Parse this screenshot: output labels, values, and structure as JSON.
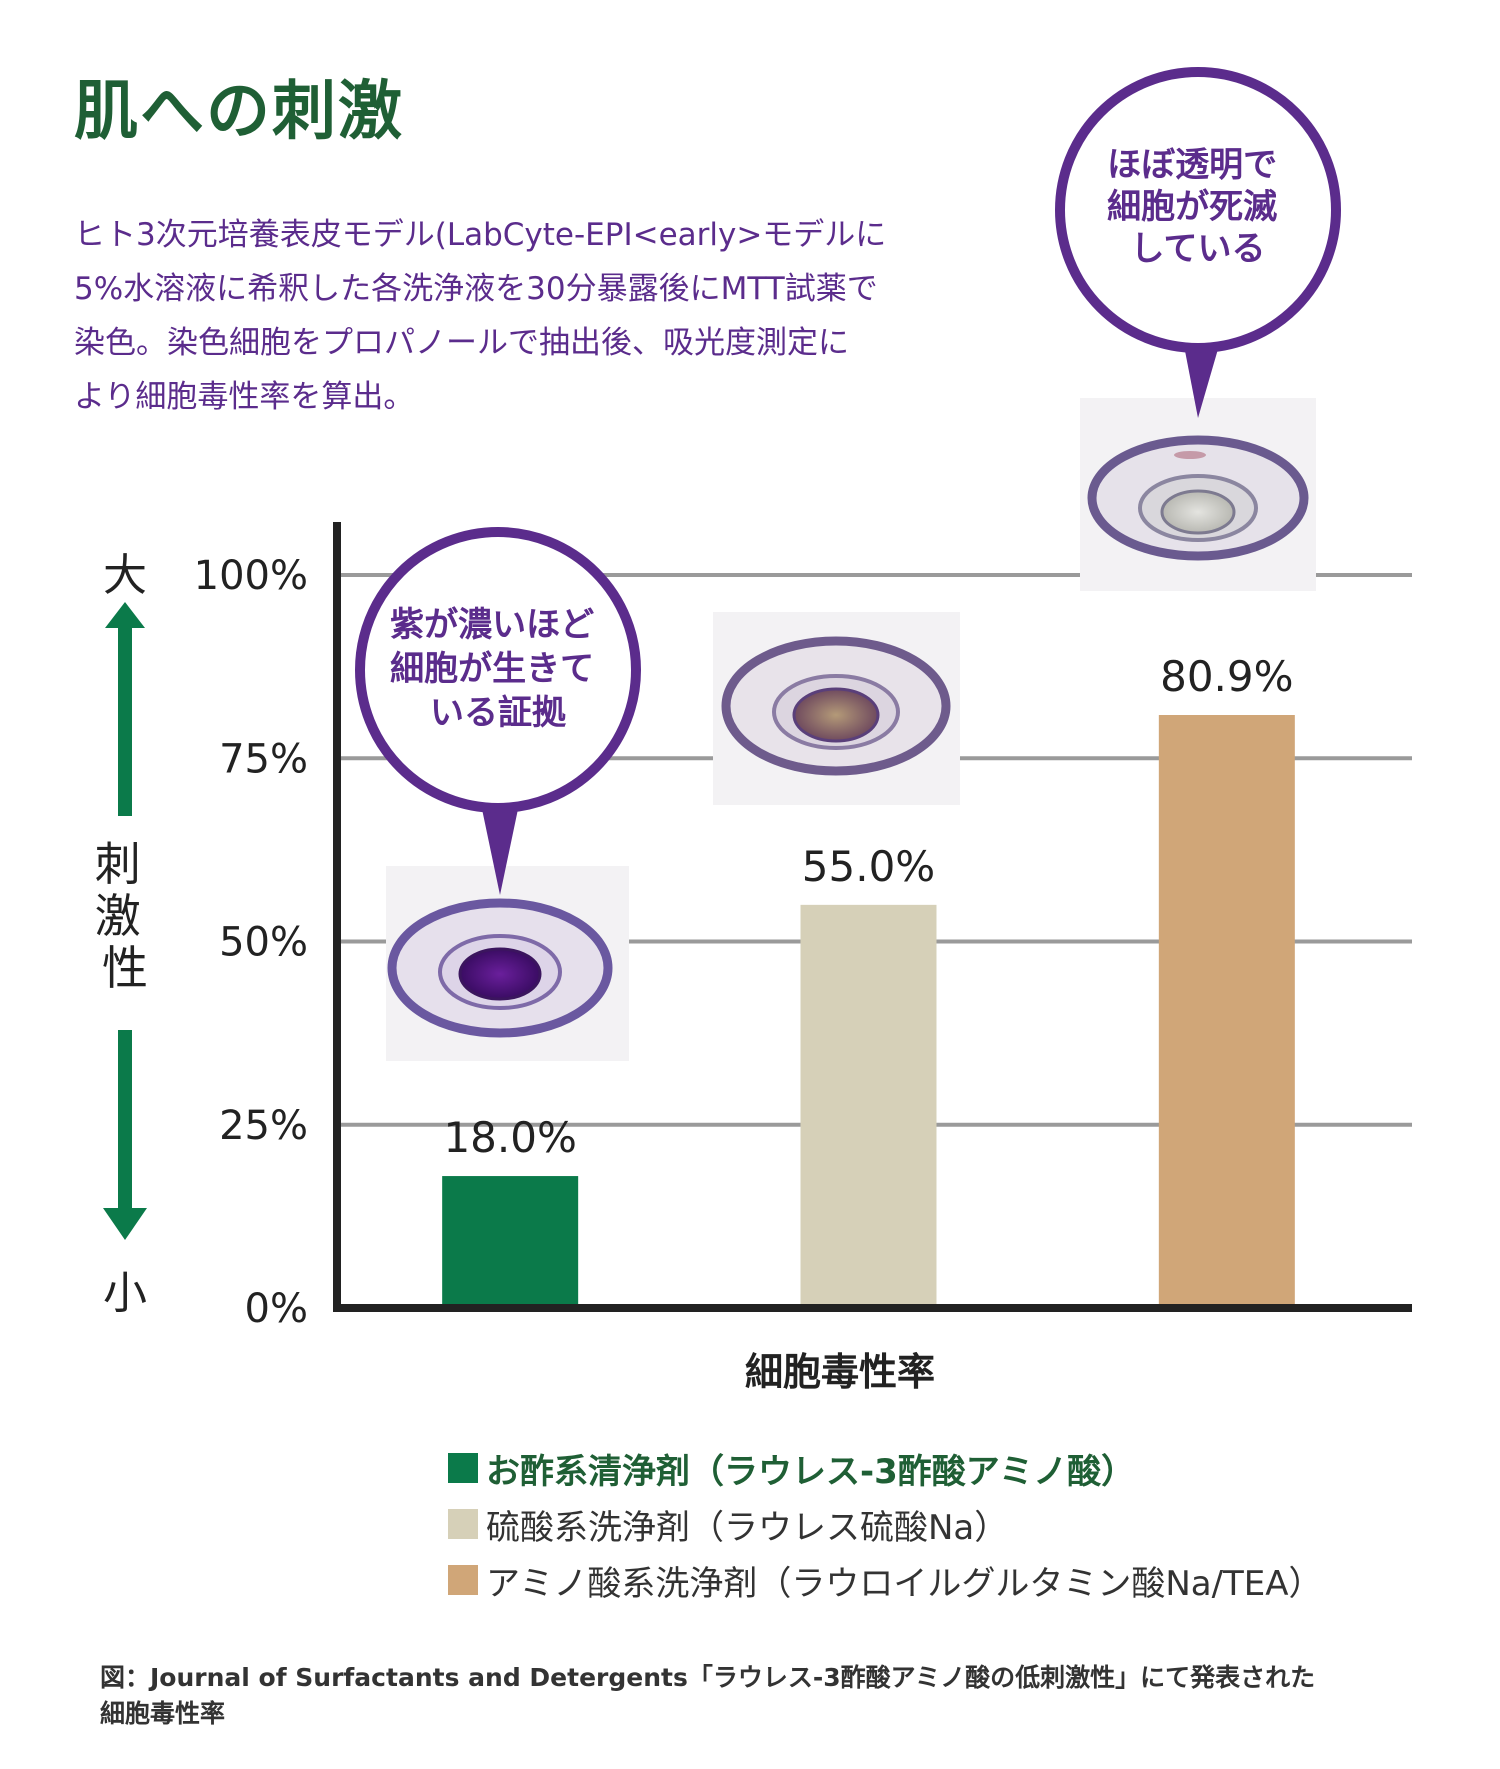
{
  "title": "肌への刺激",
  "description": [
    "ヒト3次元培養表皮モデル(LabCyte-EPI<early>モデルに",
    "5%水溶液に希釈した各洗浄液を30分暴露後にMTT試薬で",
    "染色。染色細胞をプロパノールで抽出後、吸光度測定に",
    "より細胞毒性率を算出。"
  ],
  "side_axis": {
    "top": "大",
    "middle": "刺激性",
    "bottom": "小"
  },
  "callouts": [
    {
      "lines": [
        "ほぼ透明で",
        "細胞が死滅",
        "している"
      ]
    },
    {
      "lines": [
        "紫が濃いほど",
        "細胞が生きて",
        "いる証拠"
      ]
    }
  ],
  "chart_data": {
    "type": "bar",
    "title": "",
    "xlabel": "細胞毒性率",
    "ylabel": "",
    "ylim": [
      0,
      100
    ],
    "yticks": [
      0,
      25,
      50,
      75,
      100
    ],
    "ytick_labels": [
      "0%",
      "25%",
      "50%",
      "75%",
      "100%"
    ],
    "grid": true,
    "categories": [
      "お酢系清浄剤（ラウレス-3酢酸アミノ酸）",
      "硫酸系洗浄剤（ラウレス硫酸Na）",
      "アミノ酸系洗浄剤（ラウロイルグルタミン酸Na/TEA）"
    ],
    "values": [
      18.0,
      55.0,
      80.9
    ],
    "value_labels": [
      "18.0%",
      "55.0%",
      "80.9%"
    ],
    "colors": [
      "#0b7a4a",
      "#d6d0b8",
      "#d0a678"
    ],
    "legend_position": "bottom"
  },
  "legend": [
    {
      "label": "お酢系清浄剤（ラウレス-3酢酸アミノ酸）",
      "color": "#0b7a4a"
    },
    {
      "label": "硫酸系洗浄剤（ラウレス硫酸Na）",
      "color": "#d6d0b8"
    },
    {
      "label": "アミノ酸系洗浄剤（ラウロイルグルタミン酸Na/TEA）",
      "color": "#d0a678"
    }
  ],
  "footnote": [
    "図：Journal of Surfactants and Detergents「ラウレス-3酢酸アミノ酸の低刺激性」にて発表された",
    "細胞毒性率"
  ],
  "colors": {
    "title_green": "#1f5f35",
    "callout_purple": "#5b2c8c",
    "arrow_green": "#0b7a4a"
  }
}
